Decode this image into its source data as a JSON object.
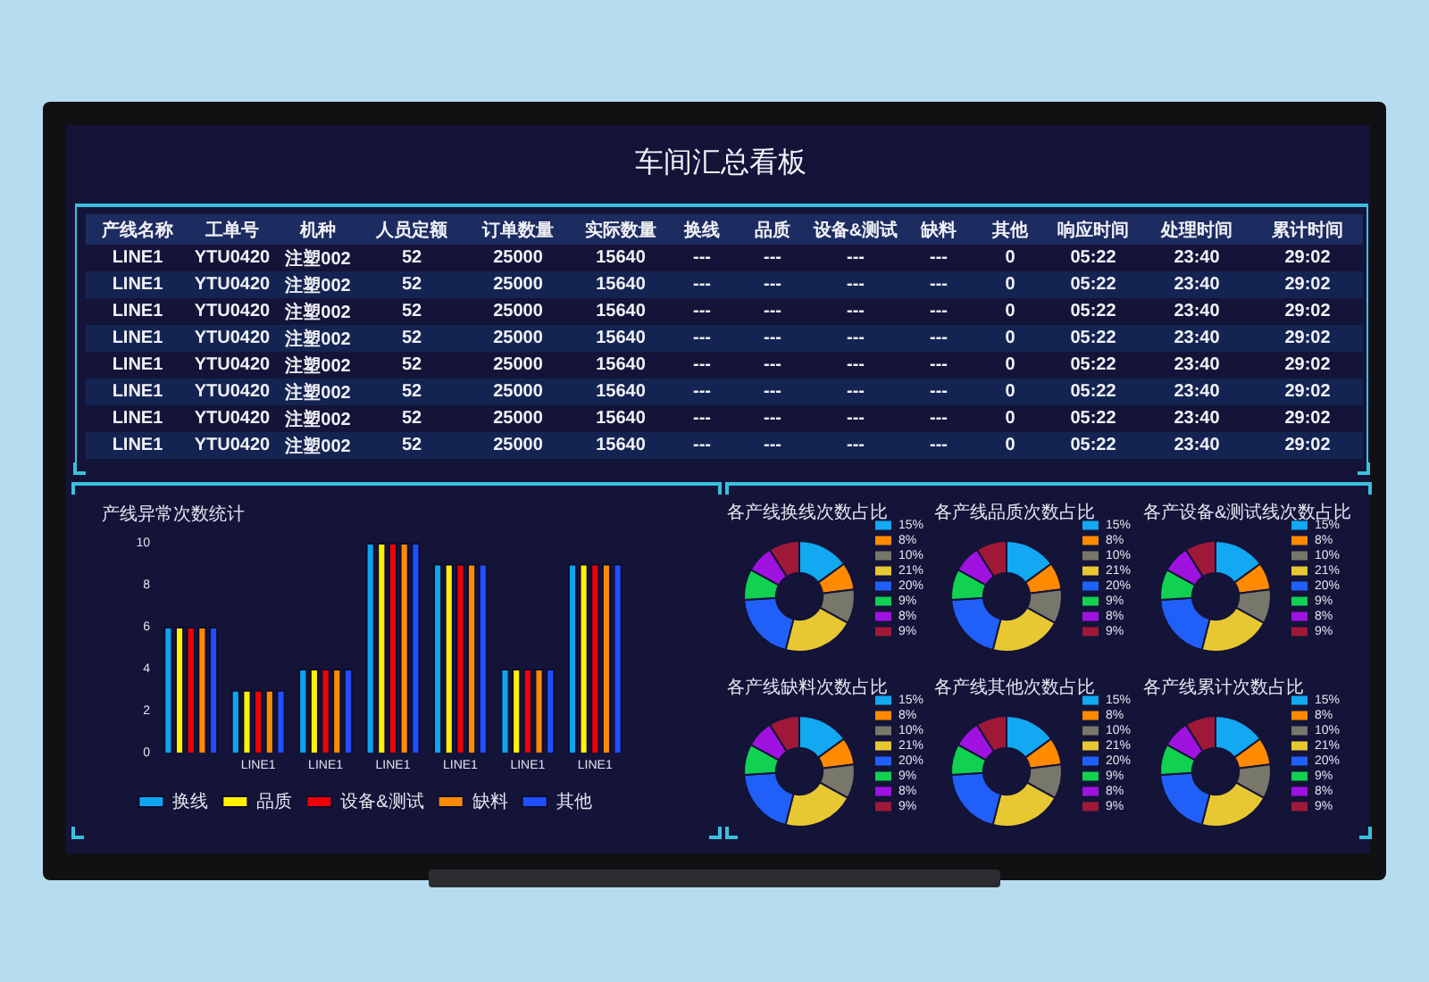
{
  "chart_data": [
    {
      "type": "other",
      "title": "车间汇总看板",
      "categories": [
        "产线名称",
        "工单号",
        "机种",
        "人员定额",
        "订单数量",
        "实际数量",
        "换线",
        "品质",
        "设备&测试",
        "缺料",
        "其他",
        "响应时间",
        "处理时间",
        "累计时间"
      ],
      "cell_labels": [
        [
          "LINE1",
          "YTU0420",
          "注塑002",
          "52",
          "25000",
          "15640",
          "---",
          "---",
          "---",
          "---",
          "0",
          "05:22",
          "23:40",
          "29:02"
        ],
        [
          "LINE1",
          "YTU0420",
          "注塑002",
          "52",
          "25000",
          "15640",
          "---",
          "---",
          "---",
          "---",
          "0",
          "05:22",
          "23:40",
          "29:02"
        ],
        [
          "LINE1",
          "YTU0420",
          "注塑002",
          "52",
          "25000",
          "15640",
          "---",
          "---",
          "---",
          "---",
          "0",
          "05:22",
          "23:40",
          "29:02"
        ],
        [
          "LINE1",
          "YTU0420",
          "注塑002",
          "52",
          "25000",
          "15640",
          "---",
          "---",
          "---",
          "---",
          "0",
          "05:22",
          "23:40",
          "29:02"
        ],
        [
          "LINE1",
          "YTU0420",
          "注塑002",
          "52",
          "25000",
          "15640",
          "---",
          "---",
          "---",
          "---",
          "0",
          "05:22",
          "23:40",
          "29:02"
        ],
        [
          "LINE1",
          "YTU0420",
          "注塑002",
          "52",
          "25000",
          "15640",
          "---",
          "---",
          "---",
          "---",
          "0",
          "05:22",
          "23:40",
          "29:02"
        ],
        [
          "LINE1",
          "YTU0420",
          "注塑002",
          "52",
          "25000",
          "15640",
          "---",
          "---",
          "---",
          "---",
          "0",
          "05:22",
          "23:40",
          "29:02"
        ],
        [
          "LINE1",
          "YTU0420",
          "注塑002",
          "52",
          "25000",
          "15640",
          "---",
          "---",
          "---",
          "---",
          "0",
          "05:22",
          "23:40",
          "29:02"
        ]
      ]
    },
    {
      "type": "bar",
      "title": "产线异常次数统计",
      "categories": [
        null,
        "LINE1",
        "LINE1",
        "LINE1",
        "LINE1",
        "LINE1",
        "LINE1"
      ],
      "series": [
        {
          "name": "换线",
          "color": "#0ea5ee",
          "values": [
            6,
            3,
            4,
            10,
            9,
            4,
            9
          ]
        },
        {
          "name": "品质",
          "color": "#fff200",
          "values": [
            6,
            3,
            4,
            10,
            9,
            4,
            9
          ]
        },
        {
          "name": "设备&测试",
          "color": "#ee0008",
          "values": [
            6,
            3,
            4,
            10,
            9,
            4,
            9
          ]
        },
        {
          "name": "缺料",
          "color": "#ff8a00",
          "values": [
            6,
            3,
            4,
            10,
            9,
            4,
            9
          ]
        },
        {
          "name": "其他",
          "color": "#1f4fff",
          "values": [
            6,
            3,
            4,
            10,
            9,
            4,
            9
          ]
        }
      ],
      "ylim": [
        0,
        10
      ],
      "yticks": [
        0,
        2,
        4,
        6,
        8,
        10
      ],
      "legend": "bottom"
    },
    {
      "type": "donut",
      "title": "各产线换线次数占比",
      "categories": [
        "15%",
        "8%",
        "10%",
        "21%",
        "20%",
        "9%",
        "8%",
        "9%"
      ],
      "values": [
        15,
        8,
        10,
        21,
        20,
        9,
        8,
        9
      ],
      "colors": [
        "#12a8f2",
        "#ff8a00",
        "#77776a",
        "#e8c832",
        "#2060f8",
        "#12d050",
        "#a012e0",
        "#a01838"
      ],
      "legend": "right"
    },
    {
      "type": "donut",
      "title": "各产线品质次数占比",
      "categories": [
        "15%",
        "8%",
        "10%",
        "21%",
        "20%",
        "9%",
        "8%",
        "9%"
      ],
      "values": [
        15,
        8,
        10,
        21,
        20,
        9,
        8,
        9
      ],
      "colors": [
        "#12a8f2",
        "#ff8a00",
        "#77776a",
        "#e8c832",
        "#2060f8",
        "#12d050",
        "#a012e0",
        "#a01838"
      ],
      "legend": "right"
    },
    {
      "type": "donut",
      "title": "各产设备&测试线次数占比",
      "categories": [
        "15%",
        "8%",
        "10%",
        "21%",
        "20%",
        "9%",
        "8%",
        "9%"
      ],
      "values": [
        15,
        8,
        10,
        21,
        20,
        9,
        8,
        9
      ],
      "colors": [
        "#12a8f2",
        "#ff8a00",
        "#77776a",
        "#e8c832",
        "#2060f8",
        "#12d050",
        "#a012e0",
        "#a01838"
      ],
      "legend": "right"
    },
    {
      "type": "donut",
      "title": "各产线缺料次数占比",
      "categories": [
        "15%",
        "8%",
        "10%",
        "21%",
        "20%",
        "9%",
        "8%",
        "9%"
      ],
      "values": [
        15,
        8,
        10,
        21,
        20,
        9,
        8,
        9
      ],
      "colors": [
        "#12a8f2",
        "#ff8a00",
        "#77776a",
        "#e8c832",
        "#2060f8",
        "#12d050",
        "#a012e0",
        "#a01838"
      ],
      "legend": "right"
    },
    {
      "type": "donut",
      "title": "各产线其他次数占比",
      "categories": [
        "15%",
        "8%",
        "10%",
        "21%",
        "20%",
        "9%",
        "8%",
        "9%"
      ],
      "values": [
        15,
        8,
        10,
        21,
        20,
        9,
        8,
        9
      ],
      "colors": [
        "#12a8f2",
        "#ff8a00",
        "#77776a",
        "#e8c832",
        "#2060f8",
        "#12d050",
        "#a012e0",
        "#a01838"
      ],
      "legend": "right"
    },
    {
      "type": "donut",
      "title": "各产线累计次数占比",
      "categories": [
        "15%",
        "8%",
        "10%",
        "21%",
        "20%",
        "9%",
        "8%",
        "9%"
      ],
      "values": [
        15,
        8,
        10,
        21,
        20,
        9,
        8,
        9
      ],
      "colors": [
        "#12a8f2",
        "#ff8a00",
        "#77776a",
        "#e8c832",
        "#2060f8",
        "#12d050",
        "#a012e0",
        "#a01838"
      ],
      "legend": "right"
    }
  ]
}
